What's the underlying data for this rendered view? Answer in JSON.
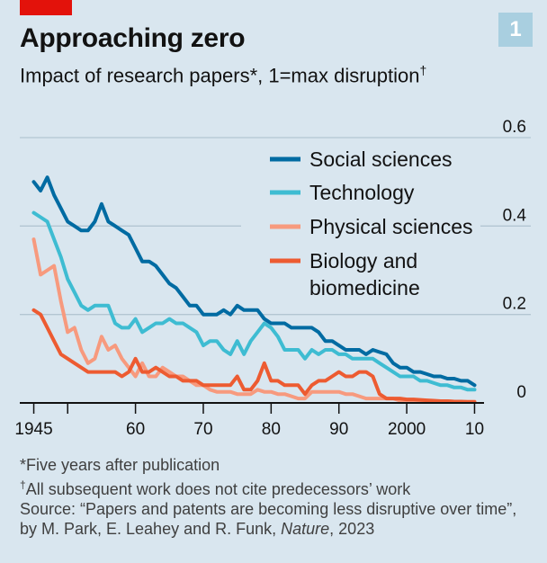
{
  "header": {
    "figure_number": "1",
    "title": "Approaching zero",
    "subtitle": "Impact of research papers*, 1=max disruption",
    "subtitle_mark": "†"
  },
  "notes": {
    "footnote_1": "*Five years after publication",
    "footnote_2_mark": "†",
    "footnote_2": "All subsequent work does not cite predecessors’ work",
    "source_prefix": "Source: “Papers and patents are becoming less disruptive over time”, by M. Park, E. Leahey and R. Funk, ",
    "source_journal": "Nature",
    "source_suffix": ", 2023"
  },
  "colors": {
    "background": "#d9e6ef",
    "social_sciences": "#006ba2",
    "technology": "#3ebcd2",
    "physical_sciences": "#f79a7e",
    "biology": "#ed5b31",
    "brand_red": "#e3120b"
  },
  "chart_data": {
    "type": "line",
    "title": "Approaching zero",
    "subtitle": "Impact of research papers*, 1=max disruption",
    "xlabel": "",
    "ylabel": "",
    "xlim": [
      1944,
      2011
    ],
    "ylim": [
      0,
      0.6
    ],
    "x_ticks": [
      1945,
      1950,
      1960,
      1970,
      1980,
      1990,
      2000,
      2010
    ],
    "x_tick_labels": [
      "1945",
      "",
      "60",
      "70",
      "80",
      "90",
      "2000",
      "10"
    ],
    "y_ticks": [
      0,
      0.2,
      0.4,
      0.6
    ],
    "y_tick_labels": [
      "0",
      "0.2",
      "0.4",
      "0.6"
    ],
    "y_axis_side": "right",
    "grid": true,
    "legend_position": "top-right",
    "x": [
      1945,
      1946,
      1947,
      1948,
      1949,
      1950,
      1951,
      1952,
      1953,
      1954,
      1955,
      1956,
      1957,
      1958,
      1959,
      1960,
      1961,
      1962,
      1963,
      1964,
      1965,
      1966,
      1967,
      1968,
      1969,
      1970,
      1971,
      1972,
      1973,
      1974,
      1975,
      1976,
      1977,
      1978,
      1979,
      1980,
      1981,
      1982,
      1983,
      1984,
      1985,
      1986,
      1987,
      1988,
      1989,
      1990,
      1991,
      1992,
      1993,
      1994,
      1995,
      1996,
      1997,
      1998,
      1999,
      2000,
      2001,
      2002,
      2003,
      2004,
      2005,
      2006,
      2007,
      2008,
      2009,
      2010
    ],
    "series": [
      {
        "name": "Social sciences",
        "color": "#006ba2",
        "values": [
          0.5,
          0.48,
          0.51,
          0.47,
          0.44,
          0.41,
          0.4,
          0.39,
          0.39,
          0.41,
          0.45,
          0.41,
          0.4,
          0.39,
          0.38,
          0.35,
          0.32,
          0.32,
          0.31,
          0.29,
          0.27,
          0.26,
          0.24,
          0.22,
          0.22,
          0.2,
          0.2,
          0.2,
          0.21,
          0.2,
          0.22,
          0.21,
          0.21,
          0.21,
          0.19,
          0.18,
          0.18,
          0.18,
          0.17,
          0.17,
          0.17,
          0.17,
          0.16,
          0.14,
          0.14,
          0.13,
          0.12,
          0.12,
          0.12,
          0.11,
          0.12,
          0.115,
          0.11,
          0.09,
          0.08,
          0.08,
          0.07,
          0.07,
          0.065,
          0.06,
          0.06,
          0.055,
          0.055,
          0.05,
          0.05,
          0.04
        ]
      },
      {
        "name": "Technology",
        "color": "#3ebcd2",
        "values": [
          0.43,
          0.42,
          0.41,
          0.37,
          0.33,
          0.28,
          0.25,
          0.22,
          0.21,
          0.22,
          0.22,
          0.22,
          0.18,
          0.17,
          0.17,
          0.19,
          0.16,
          0.17,
          0.18,
          0.18,
          0.19,
          0.18,
          0.18,
          0.17,
          0.16,
          0.13,
          0.14,
          0.14,
          0.12,
          0.11,
          0.14,
          0.11,
          0.14,
          0.16,
          0.18,
          0.17,
          0.15,
          0.12,
          0.12,
          0.12,
          0.1,
          0.12,
          0.11,
          0.12,
          0.12,
          0.11,
          0.11,
          0.1,
          0.1,
          0.1,
          0.1,
          0.09,
          0.08,
          0.07,
          0.06,
          0.06,
          0.06,
          0.05,
          0.05,
          0.045,
          0.04,
          0.04,
          0.035,
          0.035,
          0.03,
          0.03
        ]
      },
      {
        "name": "Physical sciences",
        "color": "#f79a7e",
        "values": [
          0.37,
          0.29,
          0.3,
          0.31,
          0.23,
          0.16,
          0.17,
          0.12,
          0.09,
          0.1,
          0.15,
          0.12,
          0.13,
          0.1,
          0.08,
          0.06,
          0.09,
          0.06,
          0.06,
          0.08,
          0.07,
          0.06,
          0.06,
          0.05,
          0.04,
          0.04,
          0.03,
          0.025,
          0.025,
          0.025,
          0.02,
          0.02,
          0.02,
          0.03,
          0.025,
          0.025,
          0.02,
          0.02,
          0.015,
          0.01,
          0.01,
          0.025,
          0.025,
          0.025,
          0.025,
          0.025,
          0.02,
          0.02,
          0.015,
          0.01,
          0.01,
          0.01,
          0.01,
          0.01,
          0.005,
          0.005,
          0.005,
          0.005,
          0.005,
          0.004,
          0.004,
          0.004,
          0.003,
          0.003,
          0.003,
          0.003
        ]
      },
      {
        "name": "Biology and biomedicine",
        "color": "#ed5b31",
        "values": [
          0.21,
          0.2,
          0.17,
          0.14,
          0.11,
          0.1,
          0.09,
          0.08,
          0.07,
          0.07,
          0.07,
          0.07,
          0.07,
          0.06,
          0.07,
          0.1,
          0.07,
          0.07,
          0.08,
          0.07,
          0.06,
          0.06,
          0.05,
          0.05,
          0.05,
          0.04,
          0.04,
          0.04,
          0.04,
          0.04,
          0.06,
          0.03,
          0.03,
          0.05,
          0.09,
          0.05,
          0.05,
          0.04,
          0.04,
          0.04,
          0.02,
          0.04,
          0.05,
          0.05,
          0.06,
          0.07,
          0.06,
          0.06,
          0.07,
          0.07,
          0.06,
          0.02,
          0.01,
          0.01,
          0.01,
          0.008,
          0.008,
          0.007,
          0.006,
          0.005,
          0.004,
          0.004,
          0.003,
          0.003,
          0.002,
          0.002
        ]
      }
    ]
  }
}
